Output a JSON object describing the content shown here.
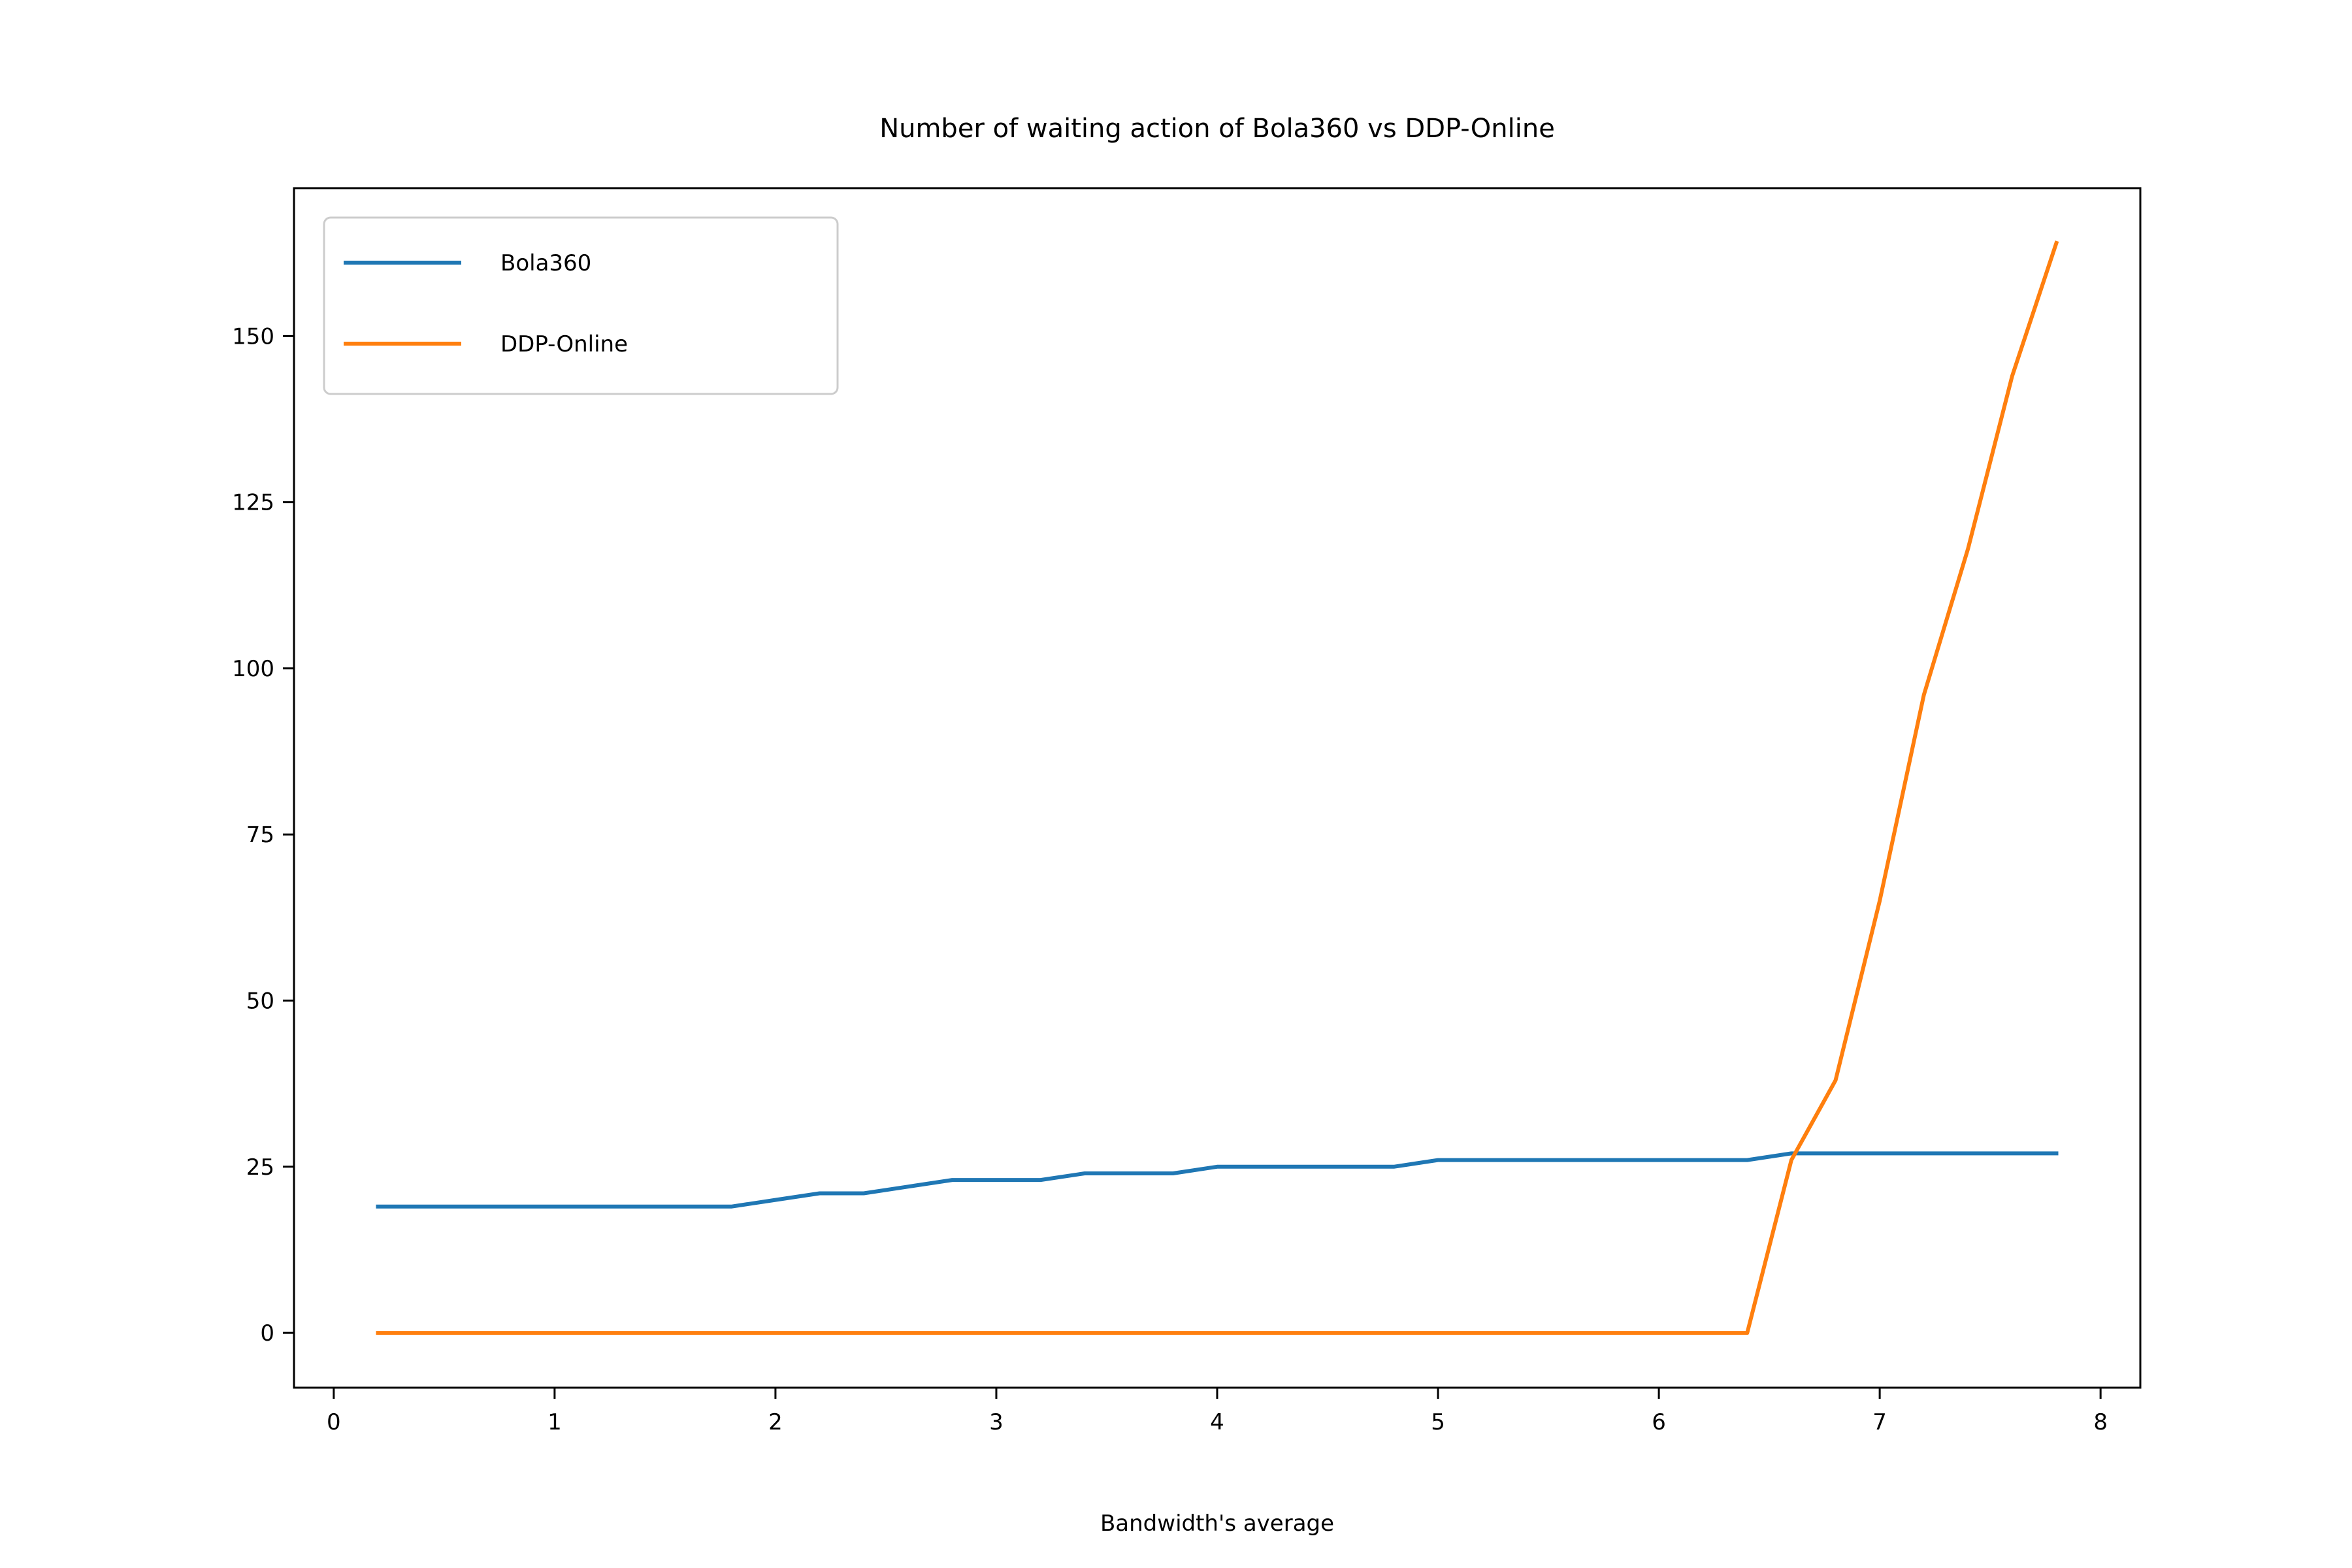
{
  "chart_data": {
    "type": "line",
    "title": "Number of waiting action of Bola360 vs DDP-Online",
    "xlabel": "Bandwidth's average",
    "ylabel": "",
    "xlim": [
      -0.18,
      8.18
    ],
    "ylim": [
      -8.25,
      172.25
    ],
    "xticks": [
      0,
      1,
      2,
      3,
      4,
      5,
      6,
      7,
      8
    ],
    "yticks": [
      0,
      25,
      50,
      75,
      100,
      125,
      150
    ],
    "legend_position": "upper-left",
    "grid": false,
    "x": [
      0.2,
      0.4,
      0.6,
      0.8,
      1.0,
      1.2,
      1.4,
      1.6,
      1.8,
      2.0,
      2.2,
      2.4,
      2.6,
      2.8,
      3.0,
      3.2,
      3.4,
      3.6,
      3.8,
      4.0,
      4.2,
      4.4,
      4.6,
      4.8,
      5.0,
      5.2,
      5.4,
      5.6,
      5.8,
      6.0,
      6.2,
      6.4,
      6.6,
      6.8,
      7.0,
      7.2,
      7.4,
      7.6,
      7.8
    ],
    "series": [
      {
        "name": "Bola360",
        "color": "#1f77b4",
        "values": [
          19,
          19,
          19,
          19,
          19,
          19,
          19,
          19,
          19,
          20,
          21,
          21,
          22,
          23,
          23,
          23,
          24,
          24,
          24,
          25,
          25,
          25,
          25,
          25,
          26,
          26,
          26,
          26,
          26,
          26,
          26,
          26,
          27,
          27,
          27,
          27,
          27,
          27,
          27
        ]
      },
      {
        "name": "DDP-Online",
        "color": "#ff7f0e",
        "values": [
          0,
          0,
          0,
          0,
          0,
          0,
          0,
          0,
          0,
          0,
          0,
          0,
          0,
          0,
          0,
          0,
          0,
          0,
          0,
          0,
          0,
          0,
          0,
          0,
          0,
          0,
          0,
          0,
          0,
          0,
          0,
          0,
          26,
          38,
          65,
          96,
          118,
          144,
          164
        ]
      }
    ]
  }
}
